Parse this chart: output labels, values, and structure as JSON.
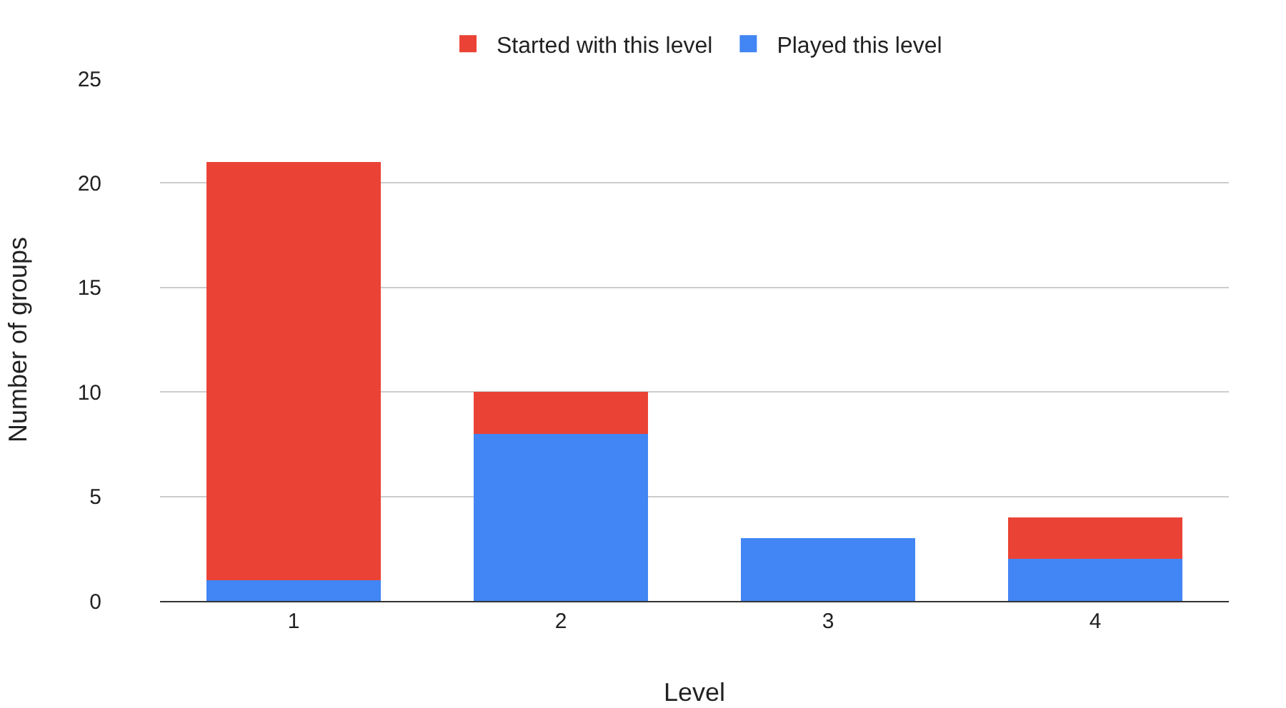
{
  "chart_data": {
    "type": "bar",
    "stacked": true,
    "xlabel": "Level",
    "ylabel": "Number of groups",
    "categories": [
      "1",
      "2",
      "3",
      "4"
    ],
    "series": [
      {
        "name": "Played this level",
        "color": "#4285f4",
        "values": [
          1,
          8,
          3,
          2
        ]
      },
      {
        "name": "Started with this level",
        "color": "#ea4335",
        "values": [
          20,
          2,
          0,
          2
        ]
      }
    ],
    "ylim": [
      0,
      25
    ],
    "yticks": [
      0,
      5,
      10,
      15,
      20,
      25
    ],
    "grid": "y",
    "legend": "top"
  }
}
